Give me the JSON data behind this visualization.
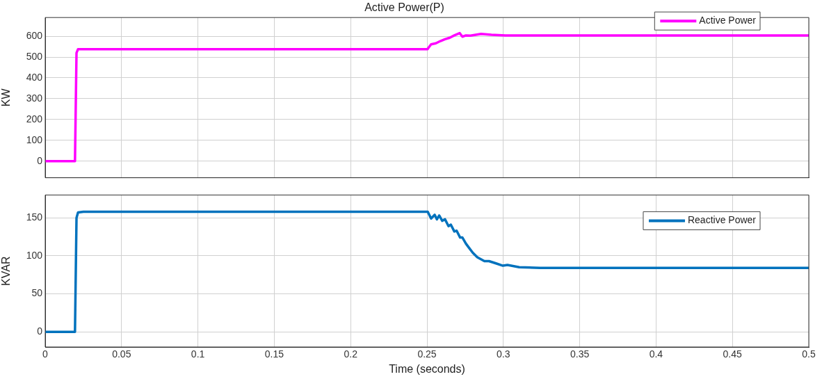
{
  "chart_data": [
    {
      "type": "line",
      "title": "Active Power(P)",
      "ylabel": "KW",
      "legend": "top right",
      "grid": true,
      "tick_labels": "y",
      "marker": "none",
      "line_style": "solid",
      "xlim": [
        0,
        0.5
      ],
      "xticks": [
        0,
        0.05,
        0.1,
        0.15,
        0.2,
        0.25,
        0.3,
        0.35,
        0.4,
        0.45,
        0.5
      ],
      "ylim": [
        -80,
        690
      ],
      "yticks": [
        0,
        100,
        200,
        300,
        400,
        500,
        600
      ],
      "series": [
        {
          "name": "Active Power",
          "color": "#ff00ff",
          "x": [
            0,
            0.0195,
            0.0205,
            0.0215,
            0.25,
            0.2504,
            0.2527,
            0.2558,
            0.2588,
            0.2618,
            0.2649,
            0.2679,
            0.2714,
            0.2732,
            0.2755,
            0.2785,
            0.2854,
            0.2922,
            0.3013,
            0.5
          ],
          "values": [
            0,
            0,
            520,
            538,
            538,
            539,
            561,
            566,
            577,
            586,
            593,
            604,
            615,
            598,
            604,
            603,
            611,
            607,
            604,
            604
          ]
        }
      ]
    },
    {
      "type": "line",
      "xlabel": "Time (seconds)",
      "ylabel": "KVAR",
      "legend": "top right",
      "grid": true,
      "marker": "none",
      "line_style": "solid",
      "xlim": [
        0,
        0.5
      ],
      "xticks": [
        0,
        0.05,
        0.1,
        0.15,
        0.2,
        0.25,
        0.3,
        0.35,
        0.4,
        0.45,
        0.5
      ],
      "ylim": [
        -20,
        180
      ],
      "yticks": [
        0,
        50,
        100,
        150
      ],
      "series": [
        {
          "name": "Reactive Power",
          "color": "#0072bd",
          "x": [
            0,
            0.0195,
            0.0205,
            0.0215,
            0.025,
            0.25,
            0.2505,
            0.2527,
            0.255,
            0.2565,
            0.258,
            0.26,
            0.2618,
            0.2641,
            0.2656,
            0.2679,
            0.2694,
            0.2717,
            0.2732,
            0.2755,
            0.2777,
            0.28,
            0.283,
            0.2876,
            0.2906,
            0.2952,
            0.2997,
            0.3027,
            0.3104,
            0.3241,
            0.5
          ],
          "values": [
            0,
            0,
            150,
            157,
            158,
            158,
            158,
            149,
            154,
            148,
            153,
            146,
            148,
            139,
            141,
            132,
            133,
            124,
            124,
            116,
            110,
            104,
            98,
            93,
            93,
            90,
            87,
            88,
            85,
            84,
            84
          ]
        }
      ]
    }
  ]
}
